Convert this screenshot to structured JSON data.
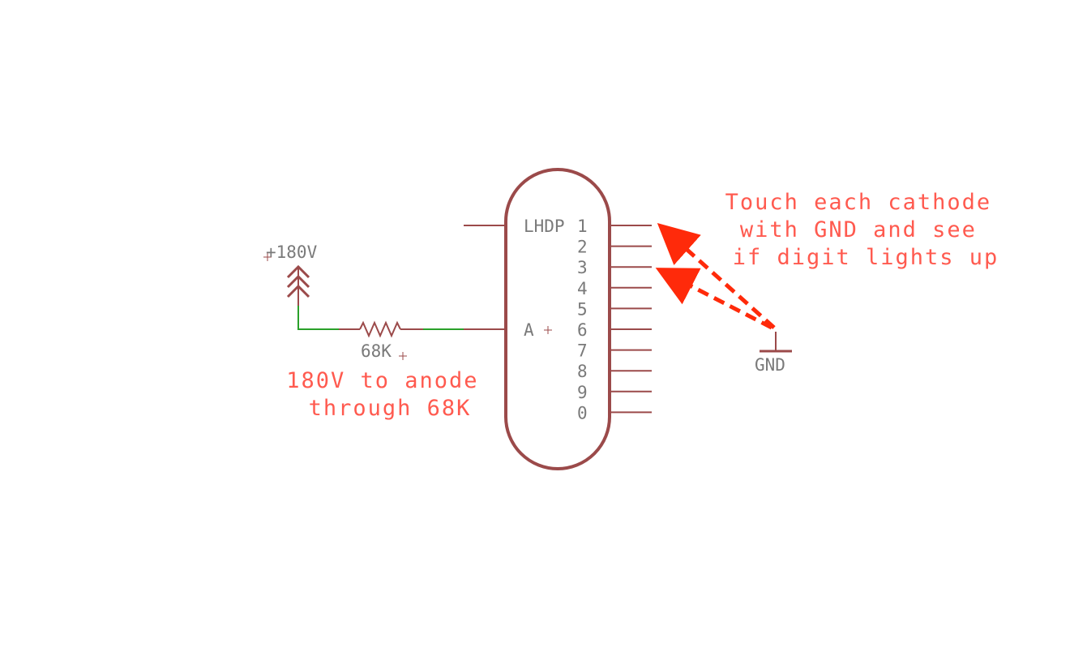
{
  "tube": {
    "label": "LHDP",
    "anode_label": "A",
    "pins": [
      "1",
      "2",
      "3",
      "4",
      "5",
      "6",
      "7",
      "8",
      "9",
      "0"
    ]
  },
  "supply": {
    "label": "+180V"
  },
  "resistor": {
    "label": "68K"
  },
  "ground": {
    "label": "GND"
  },
  "annotations": {
    "anode_note": [
      "180V to anode",
      "through 68K"
    ],
    "cathode_note": [
      "Touch each cathode",
      "with GND and see",
      "if digit lights up"
    ]
  },
  "colors": {
    "symbol": "#9b4a4a",
    "net": "#2aa02a",
    "annotation": "#ff5a4f",
    "arrow": "#ff2a0a",
    "label": "#7a7a7a"
  }
}
